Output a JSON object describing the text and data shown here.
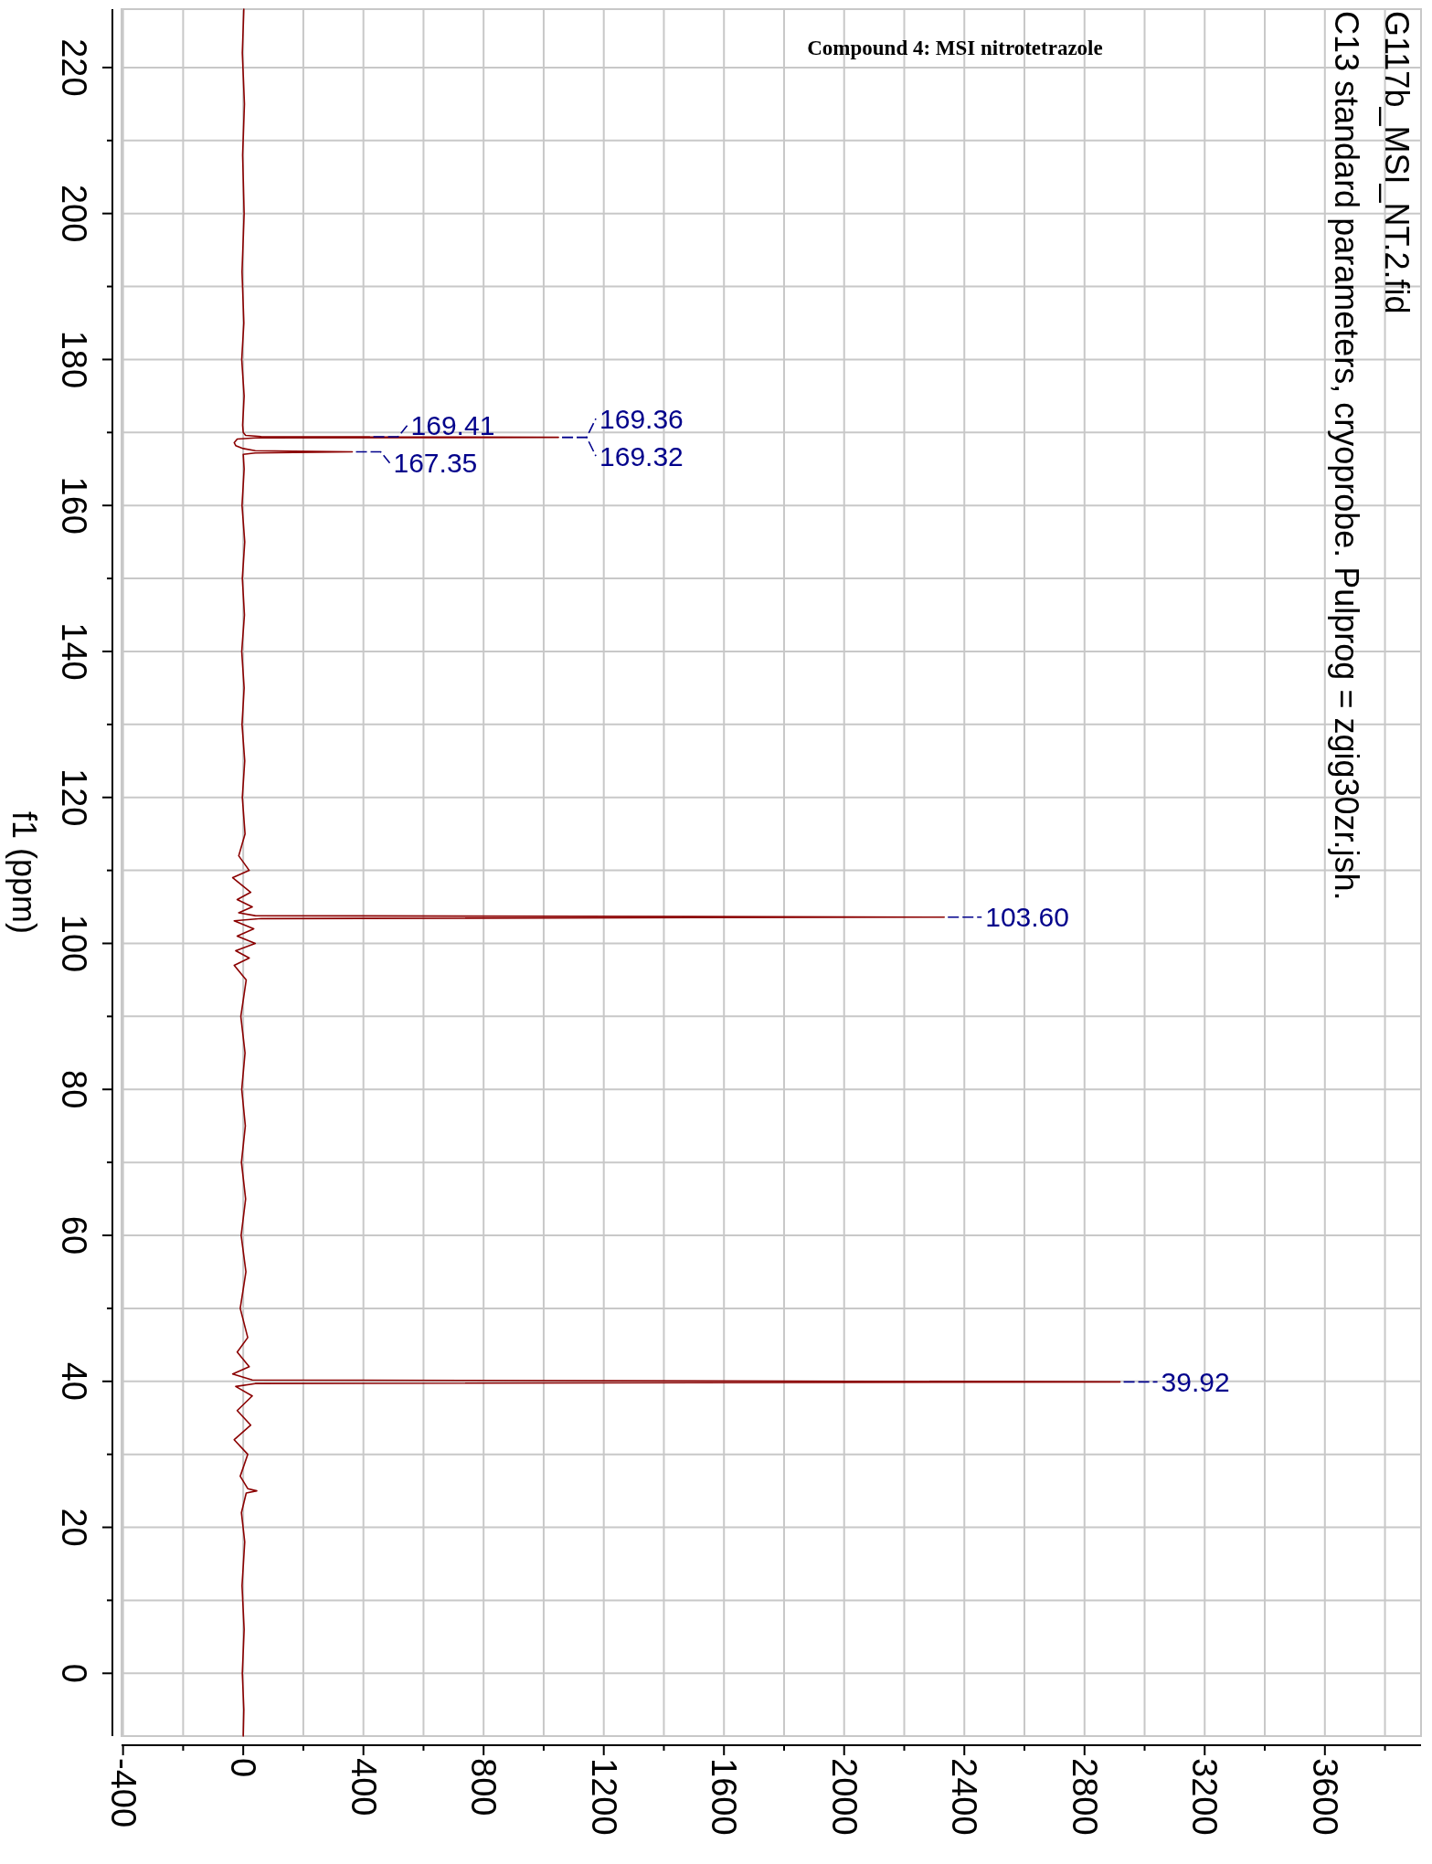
{
  "chart_data": {
    "type": "line",
    "title": "Compound 4: MSI nitrotetrazole",
    "ylabel": "f1 (ppm)",
    "annotations": [
      "G117b_MSI_NT.2.fid",
      "C13 standard parameters, cryoprobe.  Pulprog = zgig30zr.jsh.",
      {
        "text": "169.41",
        "x": 421,
        "y": 169.41
      },
      {
        "text": "169.36",
        "x": 1049,
        "y": 169.36
      },
      {
        "text": "169.32",
        "x": 1049,
        "y": 169.32
      },
      {
        "text": "167.35",
        "x": 363,
        "y": 167.35
      },
      {
        "text": "103.60",
        "x": 2333,
        "y": 103.6
      },
      {
        "text": "39.92",
        "x": 2918,
        "y": 39.92
      }
    ],
    "xlim": [
      -405,
      3920
    ],
    "ylim": [
      -8.6,
      228
    ],
    "yticks": [
      {
        "value": 220,
        "label": "220"
      },
      {
        "value": 210,
        "label": null
      },
      {
        "value": 200,
        "label": "200"
      },
      {
        "value": 190,
        "label": null
      },
      {
        "value": 180,
        "label": "180"
      },
      {
        "value": 170,
        "label": null
      },
      {
        "value": 160,
        "label": "160"
      },
      {
        "value": 150,
        "label": null
      },
      {
        "value": 140,
        "label": "140"
      },
      {
        "value": 130,
        "label": null
      },
      {
        "value": 120,
        "label": "120"
      },
      {
        "value": 110,
        "label": null
      },
      {
        "value": 100,
        "label": "100"
      },
      {
        "value": 90,
        "label": null
      },
      {
        "value": 80,
        "label": "80"
      },
      {
        "value": 70,
        "label": null
      },
      {
        "value": 60,
        "label": "60"
      },
      {
        "value": 50,
        "label": null
      },
      {
        "value": 40,
        "label": "40"
      },
      {
        "value": 30,
        "label": null
      },
      {
        "value": 20,
        "label": "20"
      },
      {
        "value": 10,
        "label": null
      },
      {
        "value": 0,
        "label": "0"
      }
    ],
    "xticks": [
      -400,
      {
        "value": -200,
        "label": null
      },
      0,
      {
        "value": 200,
        "label": null
      },
      400,
      {
        "value": 600,
        "label": null
      },
      800,
      {
        "value": 1000,
        "label": null
      },
      1200,
      {
        "value": 1400,
        "label": null
      },
      1600,
      {
        "value": 1800,
        "label": null
      },
      2000,
      {
        "value": 2200,
        "label": null
      },
      2400,
      {
        "value": 2600,
        "label": null
      },
      2800,
      {
        "value": 3000,
        "label": null
      },
      3200,
      {
        "value": 3400,
        "label": null
      },
      3600,
      {
        "value": 3800,
        "label": null
      }
    ],
    "grid": true,
    "series": [
      {
        "color": "#8b0000",
        "values": [
          228,
          222,
          215,
          208,
          200,
          192,
          185,
          180,
          175,
          171,
          170,
          169.6,
          169.45,
          169.41,
          169.38,
          169.36,
          169.34,
          169.32,
          169.25,
          169.1,
          168.6,
          168.2,
          167.8,
          167.5,
          167.35,
          167.2,
          167,
          165,
          160,
          155,
          150,
          145,
          140,
          135,
          130,
          125,
          120,
          115,
          112,
          110,
          109,
          107,
          106,
          105,
          104.2,
          103.8,
          103.6,
          103.4,
          103.1,
          102,
          101,
          100,
          99,
          98,
          97,
          95,
          90,
          85,
          80,
          75,
          70,
          65,
          60,
          55,
          50,
          46,
          44,
          42,
          41,
          40.2,
          39.92,
          39.7,
          39.3,
          38,
          36,
          34,
          32,
          30,
          27,
          25.3,
          25,
          24.7,
          22,
          18,
          12,
          6,
          0,
          -5,
          -8.6
        ],
        "x": [
          2,
          -3,
          4,
          -2,
          3,
          -4,
          2,
          -5,
          3,
          -2,
          0,
          8,
          60,
          421,
          300,
          1049,
          1000,
          1049,
          40,
          -20,
          -30,
          -25,
          0,
          40,
          363,
          40,
          0,
          3,
          -4,
          5,
          -3,
          4,
          -5,
          3,
          -4,
          5,
          -3,
          6,
          -15,
          20,
          -35,
          25,
          -20,
          30,
          -15,
          40,
          2333,
          60,
          -30,
          35,
          -20,
          40,
          -25,
          20,
          -30,
          10,
          -8,
          6,
          -5,
          7,
          -6,
          8,
          -7,
          9,
          -10,
          15,
          -20,
          20,
          -35,
          30,
          2918,
          40,
          -25,
          30,
          -20,
          25,
          -30,
          15,
          -10,
          15,
          45,
          10,
          -6,
          5,
          -4,
          3,
          -3,
          2,
          0
        ]
      }
    ]
  }
}
